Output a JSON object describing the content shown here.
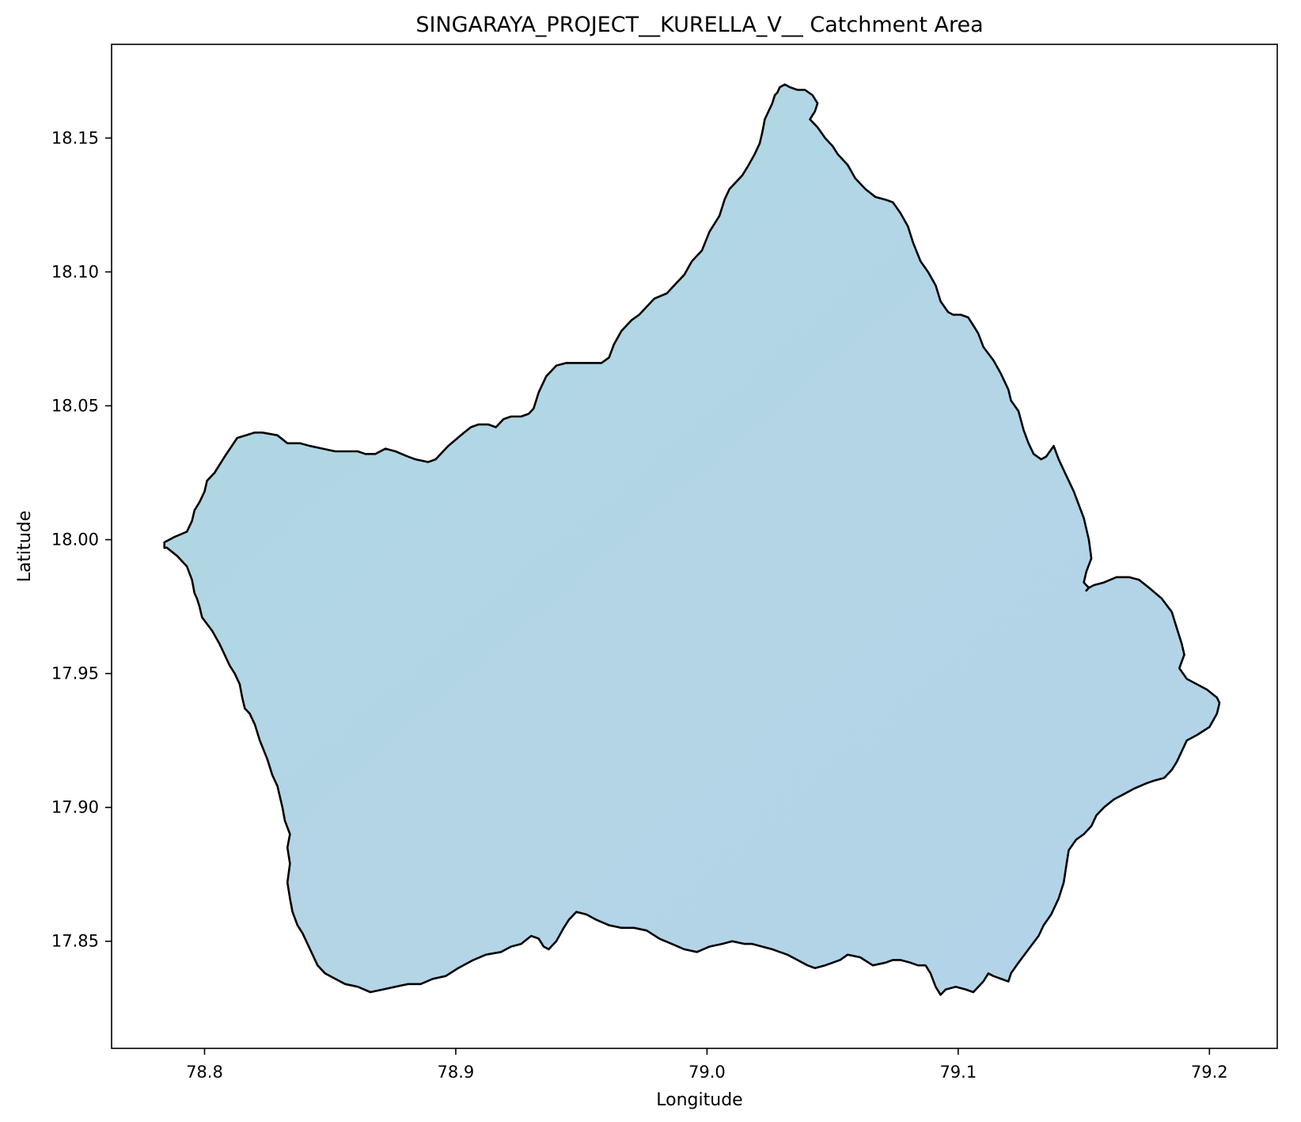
{
  "chart_data": {
    "type": "map",
    "title": "SINGARAYA_PROJECT__KURELLA_V__ Catchment Area",
    "xlabel": "Longitude",
    "ylabel": "Latitude",
    "xlim": [
      78.763,
      79.227
    ],
    "ylim": [
      17.81,
      18.185
    ],
    "xticks": [
      "78.8",
      "78.9",
      "79.0",
      "79.1",
      "79.2"
    ],
    "xtick_values": [
      78.8,
      78.9,
      79.0,
      79.1,
      79.2
    ],
    "yticks": [
      "17.85",
      "17.90",
      "17.95",
      "18.00",
      "18.05",
      "18.10",
      "18.15"
    ],
    "ytick_values": [
      17.85,
      17.9,
      17.95,
      18.0,
      18.05,
      18.1,
      18.15
    ],
    "grid": false,
    "fill_color": "#b3d5e6",
    "fill_color_alt": "#add8e6",
    "edge_color": "#000000",
    "polygon": {
      "lon": [
        78.784,
        78.788,
        78.793,
        78.795,
        78.796,
        78.798,
        78.8,
        78.801,
        78.804,
        78.808,
        78.813,
        78.82,
        78.823,
        78.829,
        78.833,
        78.838,
        78.842,
        78.847,
        78.852,
        78.856,
        78.858,
        78.861,
        78.864,
        78.868,
        78.872,
        78.876,
        78.881,
        78.884,
        78.889,
        78.892,
        78.897,
        78.902,
        78.906,
        78.909,
        78.913,
        78.916,
        78.919,
        78.922,
        78.926,
        78.929,
        78.931,
        78.933,
        78.936,
        78.94,
        78.944,
        78.949,
        78.954,
        78.958,
        78.961,
        78.963,
        78.966,
        78.968,
        78.97,
        78.973,
        78.976,
        78.979,
        78.984,
        78.988,
        78.991,
        78.994,
        78.998,
        79.001,
        79.005,
        79.007,
        79.009,
        79.011,
        79.014,
        79.016,
        79.019,
        79.021,
        79.022,
        79.023,
        79.026,
        79.027,
        79.028,
        79.029,
        79.031,
        79.033,
        79.036,
        79.039,
        79.042,
        79.044,
        79.043,
        79.041,
        79.044,
        79.047,
        79.05,
        79.052,
        79.056,
        79.059,
        79.063,
        79.067,
        79.071,
        79.074,
        79.077,
        79.08,
        79.082,
        79.085,
        79.088,
        79.091,
        79.093,
        79.096,
        79.098,
        79.101,
        79.104,
        79.106,
        79.108,
        79.11,
        79.114,
        79.117,
        79.12,
        79.121,
        79.124,
        79.126,
        79.128,
        79.13,
        79.133,
        79.135,
        79.138,
        79.14,
        79.143,
        79.146,
        79.15,
        79.152,
        79.153,
        79.151,
        79.15,
        79.151,
        79.152,
        79.151,
        79.152,
        79.154,
        79.158,
        79.163,
        79.168,
        79.172,
        79.176,
        79.181,
        79.185,
        79.187,
        79.189,
        79.19,
        79.188,
        79.191,
        79.195,
        79.199,
        79.203,
        79.204,
        79.203,
        79.2,
        79.195,
        79.191,
        79.189,
        79.187,
        79.185,
        79.182,
        79.178,
        79.175,
        79.17,
        79.166,
        79.162,
        79.158,
        79.155,
        79.153,
        79.15,
        79.147,
        79.144,
        79.143,
        79.142,
        79.14,
        79.137,
        79.134,
        79.132,
        79.128,
        79.124,
        79.121,
        79.12,
        79.117,
        79.114,
        79.112,
        79.11,
        79.106,
        79.103,
        79.099,
        79.095,
        79.093,
        79.091,
        79.089,
        79.087,
        79.084,
        79.081,
        79.077,
        79.074,
        79.071,
        79.066,
        79.061,
        79.056,
        79.053,
        79.05,
        79.047,
        79.043,
        79.04,
        79.036,
        79.032,
        79.029,
        79.026,
        79.022,
        79.018,
        79.015,
        79.01,
        79.006,
        79.001,
        78.996,
        78.991,
        78.986,
        78.981,
        78.976,
        78.971,
        78.966,
        78.961,
        78.956,
        78.952,
        78.948,
        78.945,
        78.943,
        78.94,
        78.937,
        78.935,
        78.933,
        78.93,
        78.926,
        78.922,
        78.918,
        78.912,
        78.907,
        78.901,
        78.896,
        78.891,
        78.886,
        78.881,
        78.876,
        78.871,
        78.866,
        78.861,
        78.856,
        78.852,
        78.848,
        78.845,
        78.843,
        78.841,
        78.839,
        78.837,
        78.835,
        78.834,
        78.833,
        78.834,
        78.833,
        78.834,
        78.832,
        78.831,
        78.83,
        78.829,
        78.827,
        78.825,
        78.822,
        78.82,
        78.818,
        78.816,
        78.815,
        78.814,
        78.812,
        78.81,
        78.808,
        78.806,
        78.803,
        78.799,
        78.798,
        78.797,
        78.796,
        78.795,
        78.793,
        78.789,
        78.785,
        78.784
      ],
      "lat": [
        17.999,
        18.001,
        18.003,
        18.007,
        18.011,
        18.014,
        18.018,
        18.022,
        18.025,
        18.031,
        18.038,
        18.04,
        18.04,
        18.039,
        18.036,
        18.036,
        18.035,
        18.034,
        18.033,
        18.033,
        18.033,
        18.033,
        18.032,
        18.032,
        18.034,
        18.033,
        18.031,
        18.03,
        18.029,
        18.03,
        18.035,
        18.039,
        18.042,
        18.043,
        18.043,
        18.042,
        18.045,
        18.046,
        18.046,
        18.047,
        18.049,
        18.055,
        18.061,
        18.065,
        18.066,
        18.066,
        18.066,
        18.066,
        18.068,
        18.073,
        18.078,
        18.08,
        18.082,
        18.084,
        18.087,
        18.09,
        18.092,
        18.096,
        18.099,
        18.104,
        18.108,
        18.115,
        18.121,
        18.127,
        18.131,
        18.133,
        18.136,
        18.139,
        18.144,
        18.148,
        18.152,
        18.157,
        18.163,
        18.166,
        18.167,
        18.169,
        18.17,
        18.169,
        18.168,
        18.168,
        18.166,
        18.163,
        18.16,
        18.157,
        18.154,
        18.15,
        18.147,
        18.144,
        18.14,
        18.135,
        18.131,
        18.128,
        18.127,
        18.126,
        18.122,
        18.117,
        18.111,
        18.104,
        18.1,
        18.095,
        18.089,
        18.085,
        18.084,
        18.084,
        18.083,
        18.08,
        18.077,
        18.072,
        18.067,
        18.062,
        18.056,
        18.052,
        18.048,
        18.041,
        18.036,
        18.032,
        18.03,
        18.031,
        18.035,
        18.03,
        18.024,
        18.018,
        18.008,
        18.0,
        17.993,
        17.988,
        17.984,
        17.983,
        17.982,
        17.981,
        17.982,
        17.983,
        17.984,
        17.986,
        17.986,
        17.985,
        17.982,
        17.978,
        17.973,
        17.967,
        17.961,
        17.957,
        17.952,
        17.948,
        17.946,
        17.944,
        17.941,
        17.939,
        17.935,
        17.93,
        17.927,
        17.925,
        17.921,
        17.917,
        17.914,
        17.911,
        17.91,
        17.909,
        17.907,
        17.905,
        17.903,
        17.9,
        17.897,
        17.893,
        17.89,
        17.888,
        17.884,
        17.878,
        17.872,
        17.866,
        17.86,
        17.856,
        17.852,
        17.847,
        17.842,
        17.838,
        17.835,
        17.836,
        17.837,
        17.838,
        17.835,
        17.831,
        17.832,
        17.833,
        17.832,
        17.83,
        17.833,
        17.838,
        17.841,
        17.841,
        17.842,
        17.843,
        17.843,
        17.842,
        17.841,
        17.844,
        17.845,
        17.843,
        17.842,
        17.841,
        17.84,
        17.841,
        17.843,
        17.845,
        17.846,
        17.847,
        17.848,
        17.849,
        17.849,
        17.85,
        17.849,
        17.848,
        17.846,
        17.847,
        17.849,
        17.851,
        17.854,
        17.855,
        17.855,
        17.856,
        17.858,
        17.86,
        17.861,
        17.858,
        17.855,
        17.85,
        17.847,
        17.848,
        17.851,
        17.852,
        17.849,
        17.848,
        17.846,
        17.845,
        17.843,
        17.84,
        17.837,
        17.836,
        17.834,
        17.834,
        17.833,
        17.832,
        17.831,
        17.833,
        17.834,
        17.836,
        17.838,
        17.841,
        17.845,
        17.849,
        17.853,
        17.856,
        17.861,
        17.866,
        17.872,
        17.879,
        17.885,
        17.89,
        17.895,
        17.9,
        17.904,
        17.908,
        17.912,
        17.918,
        17.925,
        17.931,
        17.935,
        17.937,
        17.941,
        17.946,
        17.95,
        17.953,
        17.957,
        17.961,
        17.966,
        17.971,
        17.975,
        17.978,
        17.98,
        17.985,
        17.99,
        17.994,
        17.997,
        17.997,
        17.999
      ]
    }
  }
}
